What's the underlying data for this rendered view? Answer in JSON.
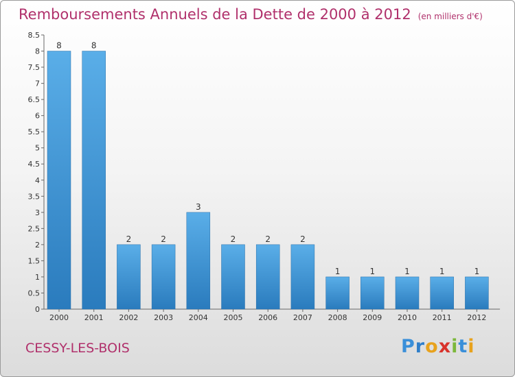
{
  "header": {
    "title": "Remboursements Annuels de la Dette de 2000 à 2012",
    "unit": "(en milliers d'€)"
  },
  "footer": {
    "commune": "CESSY-LES-BOIS",
    "logo_letters": [
      "P",
      "r",
      "o",
      "x",
      "i",
      "t",
      "i"
    ]
  },
  "colors": {
    "title": "#b0306b",
    "bar_top": "#5aaee8",
    "bar_bottom": "#2a7bbd",
    "logo": [
      "#3a8fd9",
      "#2f7ec9",
      "#e8a21c",
      "#d8322b",
      "#7cb83b",
      "#3a8fd9",
      "#e8a21c"
    ]
  },
  "chart_data": {
    "type": "bar",
    "title": "Remboursements Annuels de la Dette de 2000 à 2012",
    "xlabel": "",
    "ylabel": "",
    "categories": [
      "2000",
      "2001",
      "2002",
      "2003",
      "2004",
      "2005",
      "2006",
      "2007",
      "2008",
      "2009",
      "2010",
      "2011",
      "2012"
    ],
    "values": [
      8,
      8,
      2,
      2,
      3,
      2,
      2,
      2,
      1,
      1,
      1,
      1,
      1
    ],
    "data_labels": [
      "8",
      "8",
      "2",
      "2",
      "3",
      "2",
      "2",
      "2",
      "1",
      "1",
      "1",
      "1",
      "1"
    ],
    "ylim": [
      0,
      8.5
    ],
    "yticks": [
      "0",
      "0.5",
      "1",
      "1.5",
      "2",
      "2.5",
      "3",
      "3.5",
      "4",
      "4.5",
      "5",
      "5.5",
      "6",
      "6.5",
      "7",
      "7.5",
      "8",
      "8.5"
    ],
    "grid": false
  }
}
